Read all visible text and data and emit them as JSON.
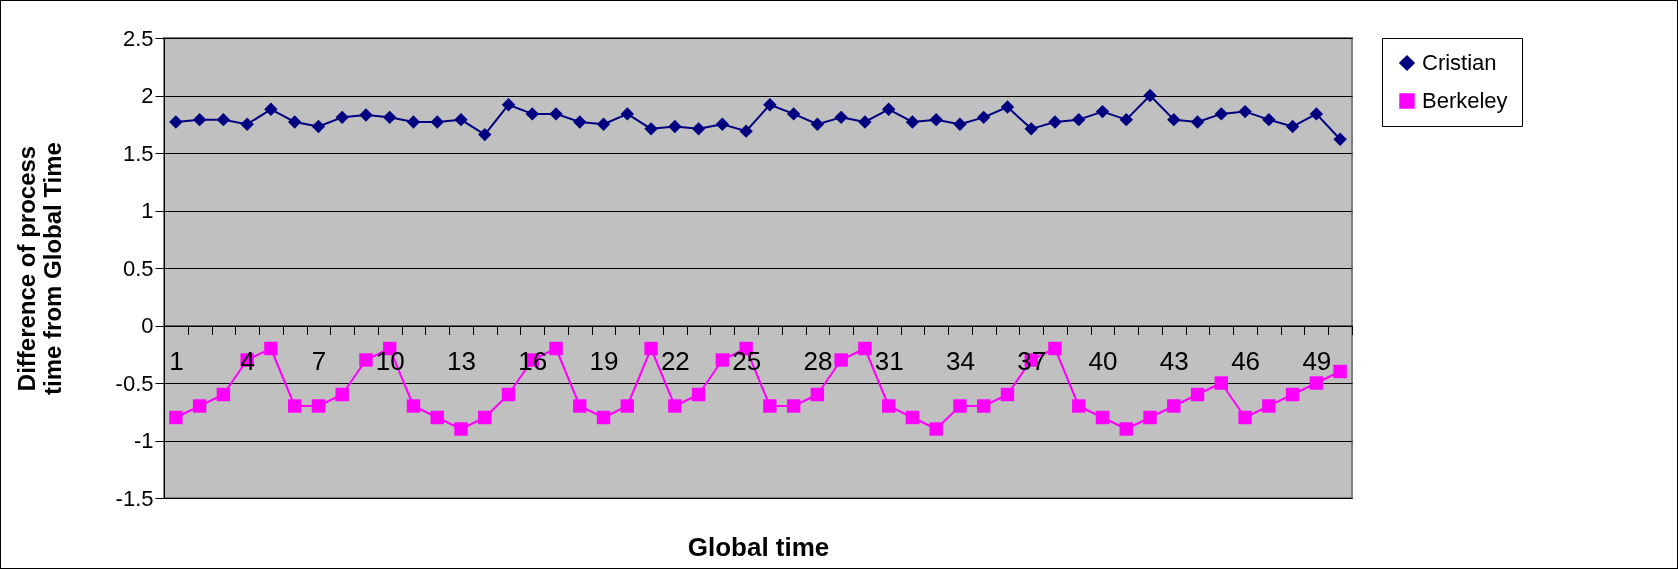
{
  "chart_data": {
    "type": "line",
    "xlabel": "Global time",
    "ylabel": "Difference of process time from Global Time",
    "categories": [
      "1",
      null,
      null,
      "4",
      null,
      null,
      "7",
      null,
      null,
      "10",
      null,
      null,
      "13",
      null,
      null,
      "16",
      null,
      null,
      "19",
      null,
      null,
      "22",
      null,
      null,
      "25",
      null,
      null,
      "28",
      null,
      null,
      "31",
      null,
      null,
      "34",
      null,
      null,
      "37",
      null,
      null,
      "40",
      null,
      null,
      "43",
      null,
      null,
      "46",
      null,
      null,
      "49",
      null
    ],
    "series": [
      {
        "name": "Cristian",
        "color": "#000080",
        "marker": "diamond",
        "values": [
          1.77,
          1.79,
          1.79,
          1.75,
          1.88,
          1.77,
          1.73,
          1.81,
          1.83,
          1.81,
          1.77,
          1.77,
          1.79,
          1.66,
          1.92,
          1.84,
          1.84,
          1.77,
          1.75,
          1.84,
          1.71,
          1.73,
          1.71,
          1.75,
          1.69,
          1.92,
          1.84,
          1.75,
          1.81,
          1.77,
          1.88,
          1.77,
          1.79,
          1.75,
          1.81,
          1.9,
          1.71,
          1.77,
          1.79,
          1.86,
          1.79,
          2.0,
          1.79,
          1.77,
          1.84,
          1.86,
          1.79,
          1.73,
          1.84,
          1.62
        ]
      },
      {
        "name": "Berkeley",
        "color": "#ff00ff",
        "marker": "square",
        "values": [
          -0.8,
          -0.7,
          -0.6,
          -0.3,
          -0.2,
          -0.7,
          -0.7,
          -0.6,
          -0.3,
          -0.2,
          -0.7,
          -0.8,
          -0.9,
          -0.8,
          -0.6,
          -0.3,
          -0.2,
          -0.7,
          -0.8,
          -0.7,
          -0.2,
          -0.7,
          -0.6,
          -0.3,
          -0.2,
          -0.7,
          -0.7,
          -0.6,
          -0.3,
          -0.2,
          -0.7,
          -0.8,
          -0.9,
          -0.7,
          -0.7,
          -0.6,
          -0.3,
          -0.2,
          -0.7,
          -0.8,
          -0.9,
          -0.8,
          -0.7,
          -0.6,
          -0.5,
          -0.8,
          -0.7,
          -0.6,
          -0.5,
          -0.4
        ]
      }
    ],
    "ylim": [
      -1.5,
      2.5
    ],
    "yticks": [
      -1.5,
      -1,
      -0.5,
      0,
      0.5,
      1,
      1.5,
      2,
      2.5
    ],
    "grid": "y",
    "legend": "right"
  }
}
